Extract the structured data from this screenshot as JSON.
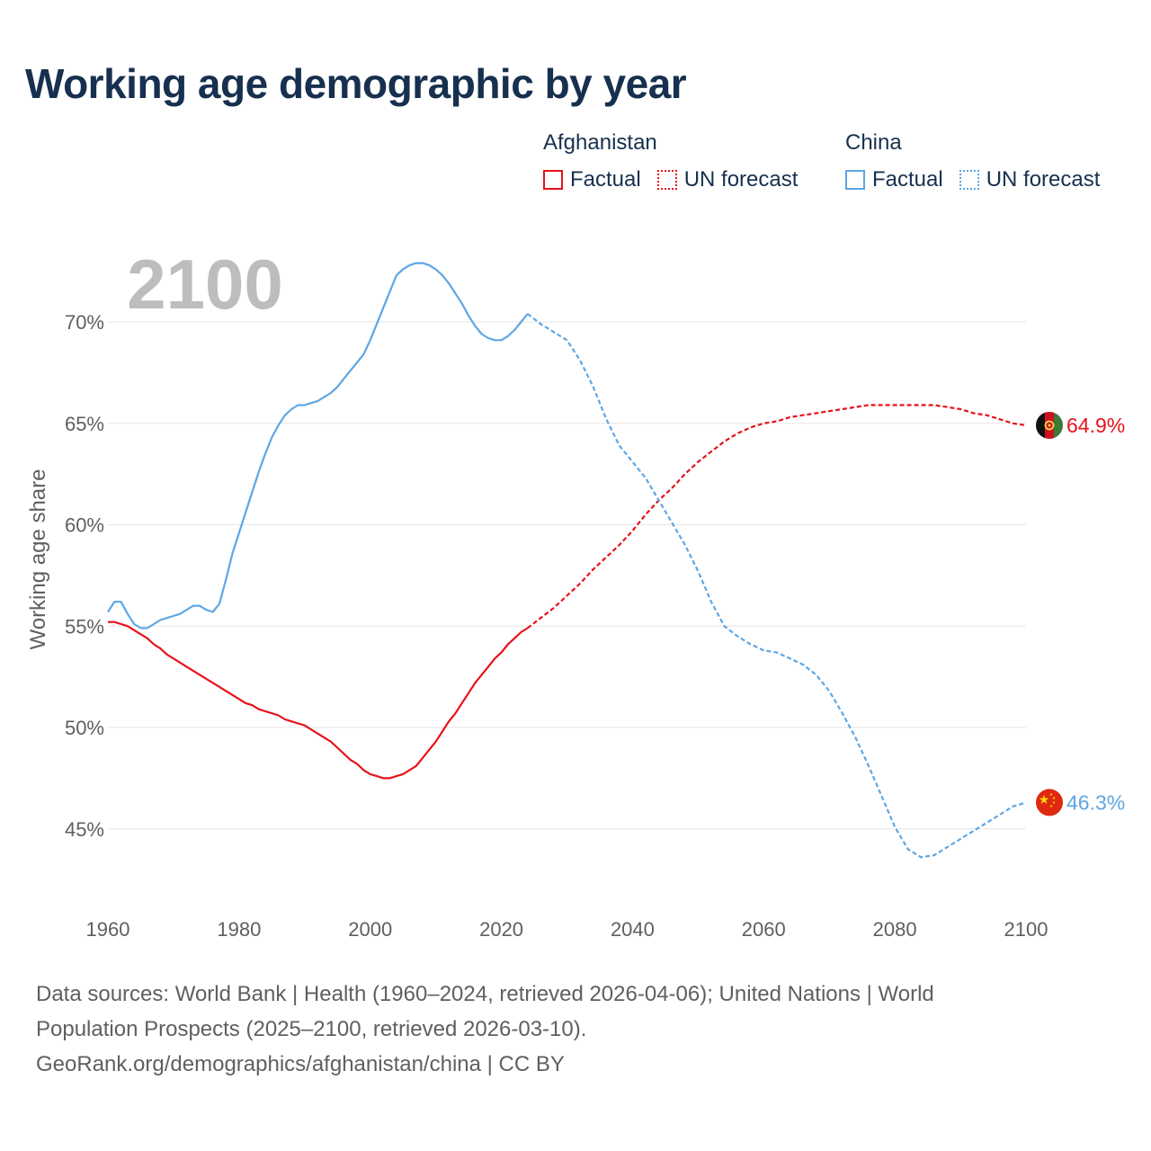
{
  "title": "Working age demographic by year",
  "legend": {
    "afghanistan": {
      "name": "Afghanistan",
      "factual": "Factual",
      "forecast": "UN forecast",
      "color": "#e8111a"
    },
    "china": {
      "name": "China",
      "factual": "Factual",
      "forecast": "UN forecast",
      "color": "#5ea6e4"
    }
  },
  "year_label": "2100",
  "footer": {
    "line1": "Data sources: World Bank | Health (1960–2024, retrieved 2026-04-06); United Nations | World",
    "line2": "Population Prospects (2025–2100, retrieved 2026-03-10).",
    "line3": "GeoRank.org/demographics/afghanistan/china | CC BY"
  },
  "chart_data": {
    "type": "line",
    "title": "Working age demographic by year",
    "xlabel": "",
    "ylabel": "Working age share",
    "xlim": [
      1960,
      2100
    ],
    "ylim": [
      42,
      73
    ],
    "x_ticks": [
      1960,
      1980,
      2000,
      2020,
      2040,
      2060,
      2080,
      2100
    ],
    "y_ticks": [
      45,
      50,
      55,
      60,
      65,
      70
    ],
    "y_tick_labels": [
      "45%",
      "50%",
      "55%",
      "60%",
      "65%",
      "70%"
    ],
    "x_tick_labels": [
      "1960",
      "1980",
      "2000",
      "2020",
      "2040",
      "2060",
      "2080",
      "2100"
    ],
    "grid": true,
    "series": [
      {
        "name": "Afghanistan",
        "color": "#e8111a",
        "end_label": "64.9%",
        "forecast_start": 2024,
        "points": [
          [
            1960,
            55.2
          ],
          [
            1961,
            55.2
          ],
          [
            1962,
            55.1
          ],
          [
            1963,
            55.0
          ],
          [
            1964,
            54.8
          ],
          [
            1965,
            54.6
          ],
          [
            1966,
            54.4
          ],
          [
            1967,
            54.1
          ],
          [
            1968,
            53.9
          ],
          [
            1969,
            53.6
          ],
          [
            1970,
            53.4
          ],
          [
            1972,
            53.0
          ],
          [
            1974,
            52.6
          ],
          [
            1976,
            52.2
          ],
          [
            1978,
            51.8
          ],
          [
            1980,
            51.4
          ],
          [
            1981,
            51.2
          ],
          [
            1982,
            51.1
          ],
          [
            1983,
            50.9
          ],
          [
            1984,
            50.8
          ],
          [
            1985,
            50.7
          ],
          [
            1986,
            50.6
          ],
          [
            1987,
            50.4
          ],
          [
            1988,
            50.3
          ],
          [
            1989,
            50.2
          ],
          [
            1990,
            50.1
          ],
          [
            1991,
            49.9
          ],
          [
            1992,
            49.7
          ],
          [
            1993,
            49.5
          ],
          [
            1994,
            49.3
          ],
          [
            1995,
            49.0
          ],
          [
            1996,
            48.7
          ],
          [
            1997,
            48.4
          ],
          [
            1998,
            48.2
          ],
          [
            1999,
            47.9
          ],
          [
            2000,
            47.7
          ],
          [
            2001,
            47.6
          ],
          [
            2002,
            47.5
          ],
          [
            2003,
            47.5
          ],
          [
            2004,
            47.6
          ],
          [
            2005,
            47.7
          ],
          [
            2006,
            47.9
          ],
          [
            2007,
            48.1
          ],
          [
            2008,
            48.5
          ],
          [
            2009,
            48.9
          ],
          [
            2010,
            49.3
          ],
          [
            2011,
            49.8
          ],
          [
            2012,
            50.3
          ],
          [
            2013,
            50.7
          ],
          [
            2014,
            51.2
          ],
          [
            2015,
            51.7
          ],
          [
            2016,
            52.2
          ],
          [
            2017,
            52.6
          ],
          [
            2018,
            53.0
          ],
          [
            2019,
            53.4
          ],
          [
            2020,
            53.7
          ],
          [
            2021,
            54.1
          ],
          [
            2022,
            54.4
          ],
          [
            2023,
            54.7
          ],
          [
            2024,
            54.9
          ],
          [
            2026,
            55.4
          ],
          [
            2028,
            55.9
          ],
          [
            2030,
            56.5
          ],
          [
            2032,
            57.1
          ],
          [
            2034,
            57.8
          ],
          [
            2036,
            58.4
          ],
          [
            2038,
            59.0
          ],
          [
            2040,
            59.7
          ],
          [
            2042,
            60.5
          ],
          [
            2044,
            61.2
          ],
          [
            2046,
            61.8
          ],
          [
            2048,
            62.5
          ],
          [
            2050,
            63.1
          ],
          [
            2052,
            63.6
          ],
          [
            2054,
            64.1
          ],
          [
            2056,
            64.5
          ],
          [
            2058,
            64.8
          ],
          [
            2060,
            65.0
          ],
          [
            2062,
            65.1
          ],
          [
            2064,
            65.3
          ],
          [
            2066,
            65.4
          ],
          [
            2068,
            65.5
          ],
          [
            2070,
            65.6
          ],
          [
            2072,
            65.7
          ],
          [
            2074,
            65.8
          ],
          [
            2076,
            65.9
          ],
          [
            2078,
            65.9
          ],
          [
            2080,
            65.9
          ],
          [
            2082,
            65.9
          ],
          [
            2084,
            65.9
          ],
          [
            2086,
            65.9
          ],
          [
            2088,
            65.8
          ],
          [
            2090,
            65.7
          ],
          [
            2092,
            65.5
          ],
          [
            2094,
            65.4
          ],
          [
            2096,
            65.2
          ],
          [
            2098,
            65.0
          ],
          [
            2100,
            64.9
          ]
        ]
      },
      {
        "name": "China",
        "color": "#5ea6e4",
        "end_label": "46.3%",
        "forecast_start": 2024,
        "points": [
          [
            1960,
            55.7
          ],
          [
            1961,
            56.2
          ],
          [
            1962,
            56.2
          ],
          [
            1963,
            55.6
          ],
          [
            1964,
            55.1
          ],
          [
            1965,
            54.9
          ],
          [
            1966,
            54.9
          ],
          [
            1967,
            55.1
          ],
          [
            1968,
            55.3
          ],
          [
            1969,
            55.4
          ],
          [
            1970,
            55.5
          ],
          [
            1971,
            55.6
          ],
          [
            1972,
            55.8
          ],
          [
            1973,
            56.0
          ],
          [
            1974,
            56.0
          ],
          [
            1975,
            55.8
          ],
          [
            1976,
            55.7
          ],
          [
            1977,
            56.1
          ],
          [
            1978,
            57.3
          ],
          [
            1979,
            58.6
          ],
          [
            1980,
            59.6
          ],
          [
            1981,
            60.6
          ],
          [
            1982,
            61.6
          ],
          [
            1983,
            62.6
          ],
          [
            1984,
            63.5
          ],
          [
            1985,
            64.3
          ],
          [
            1986,
            64.9
          ],
          [
            1987,
            65.4
          ],
          [
            1988,
            65.7
          ],
          [
            1989,
            65.9
          ],
          [
            1990,
            65.9
          ],
          [
            1991,
            66.0
          ],
          [
            1992,
            66.1
          ],
          [
            1993,
            66.3
          ],
          [
            1994,
            66.5
          ],
          [
            1995,
            66.8
          ],
          [
            1996,
            67.2
          ],
          [
            1997,
            67.6
          ],
          [
            1998,
            68.0
          ],
          [
            1999,
            68.4
          ],
          [
            2000,
            69.1
          ],
          [
            2001,
            69.9
          ],
          [
            2002,
            70.7
          ],
          [
            2003,
            71.5
          ],
          [
            2004,
            72.3
          ],
          [
            2005,
            72.6
          ],
          [
            2006,
            72.8
          ],
          [
            2007,
            72.9
          ],
          [
            2008,
            72.9
          ],
          [
            2009,
            72.8
          ],
          [
            2010,
            72.6
          ],
          [
            2011,
            72.3
          ],
          [
            2012,
            71.9
          ],
          [
            2013,
            71.4
          ],
          [
            2014,
            70.9
          ],
          [
            2015,
            70.3
          ],
          [
            2016,
            69.8
          ],
          [
            2017,
            69.4
          ],
          [
            2018,
            69.2
          ],
          [
            2019,
            69.1
          ],
          [
            2020,
            69.1
          ],
          [
            2021,
            69.3
          ],
          [
            2022,
            69.6
          ],
          [
            2023,
            70.0
          ],
          [
            2024,
            70.4
          ],
          [
            2026,
            69.9
          ],
          [
            2028,
            69.5
          ],
          [
            2030,
            69.1
          ],
          [
            2032,
            68.1
          ],
          [
            2034,
            66.8
          ],
          [
            2036,
            65.2
          ],
          [
            2038,
            63.9
          ],
          [
            2040,
            63.1
          ],
          [
            2042,
            62.3
          ],
          [
            2044,
            61.2
          ],
          [
            2046,
            60.1
          ],
          [
            2048,
            59.0
          ],
          [
            2050,
            57.7
          ],
          [
            2052,
            56.2
          ],
          [
            2054,
            55.0
          ],
          [
            2056,
            54.5
          ],
          [
            2058,
            54.1
          ],
          [
            2060,
            53.8
          ],
          [
            2062,
            53.7
          ],
          [
            2064,
            53.4
          ],
          [
            2066,
            53.1
          ],
          [
            2068,
            52.6
          ],
          [
            2070,
            51.8
          ],
          [
            2072,
            50.7
          ],
          [
            2074,
            49.5
          ],
          [
            2076,
            48.1
          ],
          [
            2078,
            46.6
          ],
          [
            2080,
            45.1
          ],
          [
            2082,
            44.0
          ],
          [
            2084,
            43.6
          ],
          [
            2086,
            43.7
          ],
          [
            2088,
            44.1
          ],
          [
            2090,
            44.5
          ],
          [
            2092,
            44.9
          ],
          [
            2094,
            45.3
          ],
          [
            2096,
            45.7
          ],
          [
            2098,
            46.1
          ],
          [
            2100,
            46.3
          ]
        ]
      }
    ]
  }
}
